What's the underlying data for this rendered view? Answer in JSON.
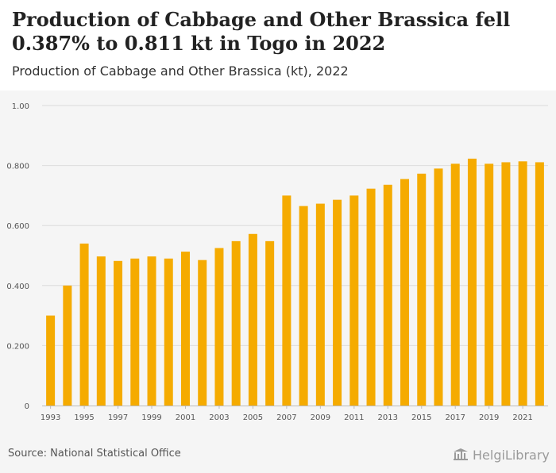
{
  "header": {
    "title": "Production of Cabbage and Other Brassica fell 0.387% to 0.811 kt in Togo in 2022",
    "subtitle": "Production of Cabbage and Other Brassica (kt), 2022"
  },
  "footer": {
    "source": "Source: National Statistical Office",
    "logo_text": "HelgiLibrary"
  },
  "colors": {
    "bar": "#f5ab00",
    "grid": "#dcdcdc",
    "axis_text": "#555555"
  },
  "chart_data": {
    "type": "bar",
    "categories": [
      "1993",
      "1994",
      "1995",
      "1996",
      "1997",
      "1998",
      "1999",
      "2000",
      "2001",
      "2002",
      "2003",
      "2004",
      "2005",
      "2006",
      "2007",
      "2008",
      "2009",
      "2010",
      "2011",
      "2012",
      "2013",
      "2014",
      "2015",
      "2016",
      "2017",
      "2018",
      "2019",
      "2020",
      "2021",
      "2022"
    ],
    "x_tick_labels": [
      "1993",
      "1995",
      "1997",
      "1999",
      "2001",
      "2003",
      "2005",
      "2007",
      "2009",
      "2011",
      "2013",
      "2015",
      "2017",
      "2019",
      "2021"
    ],
    "values": [
      0.3,
      0.4,
      0.54,
      0.497,
      0.482,
      0.49,
      0.497,
      0.49,
      0.513,
      0.485,
      0.525,
      0.548,
      0.572,
      0.548,
      0.7,
      0.665,
      0.673,
      0.686,
      0.7,
      0.723,
      0.736,
      0.755,
      0.773,
      0.79,
      0.806,
      0.823,
      0.806,
      0.811,
      0.814,
      0.811
    ],
    "y_ticks": [
      "0",
      "0.200",
      "0.400",
      "0.600",
      "0.800",
      "1.00"
    ],
    "ylim": [
      0,
      1.0
    ],
    "grid": true
  }
}
